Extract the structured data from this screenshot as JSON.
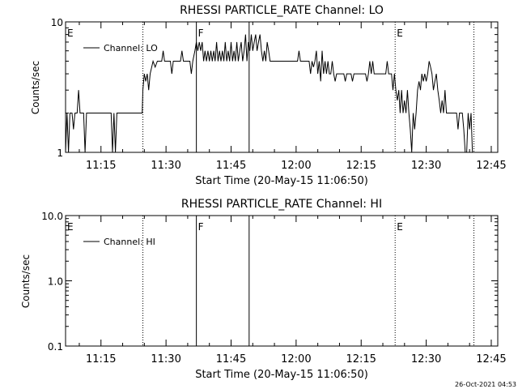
{
  "footer_timestamp": "26-Oct-2021 04:53",
  "chart_data": [
    {
      "type": "line",
      "title": "RHESSI PARTICLE_RATE Channel: LO",
      "xlabel": "Start Time (20-May-15 11:06:50)",
      "ylabel": "Counts/sec",
      "yscale": "log",
      "ylim": [
        1,
        10
      ],
      "ytick_labels": [
        "1",
        "10"
      ],
      "xlim": [
        "11:06:50",
        "12:46:30"
      ],
      "xtick_labels": [
        "11:15",
        "11:30",
        "11:45",
        "12:00",
        "12:15",
        "12:30",
        "12:45"
      ],
      "legend_entries": [
        "Channel: LO"
      ],
      "legend_position": "top-left",
      "markers": [
        {
          "label": "E",
          "time": "11:06:50",
          "style": "none"
        },
        {
          "label": "",
          "time": "11:24:40",
          "style": "dotted"
        },
        {
          "label": "F",
          "time": "11:37:00",
          "style": "solid"
        },
        {
          "label": "",
          "time": "11:49:10",
          "style": "solid"
        },
        {
          "label": "E",
          "time": "12:22:50",
          "style": "dotted"
        },
        {
          "label": "",
          "time": "12:41:00",
          "style": "dotted"
        }
      ],
      "series": [
        {
          "name": "Channel: LO",
          "points": [
            [
              "11:06:50",
              1.0
            ],
            [
              "11:07:10",
              2.0
            ],
            [
              "11:07:30",
              1.0
            ],
            [
              "11:07:50",
              2.0
            ],
            [
              "11:08:20",
              2.0
            ],
            [
              "11:08:40",
              1.5
            ],
            [
              "11:09:00",
              2.0
            ],
            [
              "11:09:30",
              2.0
            ],
            [
              "11:09:50",
              3.0
            ],
            [
              "11:10:10",
              2.0
            ],
            [
              "11:11:00",
              2.0
            ],
            [
              "11:11:20",
              1.0
            ],
            [
              "11:11:40",
              2.0
            ],
            [
              "11:15:00",
              2.0
            ],
            [
              "11:17:20",
              2.0
            ],
            [
              "11:17:40",
              1.0
            ],
            [
              "11:18:00",
              2.0
            ],
            [
              "11:18:20",
              1.0
            ],
            [
              "11:18:40",
              2.0
            ],
            [
              "11:24:30",
              2.0
            ],
            [
              "11:24:40",
              3.0
            ],
            [
              "11:25:00",
              4.0
            ],
            [
              "11:25:20",
              3.5
            ],
            [
              "11:25:40",
              4.0
            ],
            [
              "11:26:00",
              3.0
            ],
            [
              "11:26:20",
              4.0
            ],
            [
              "11:27:00",
              5.0
            ],
            [
              "11:27:30",
              4.5
            ],
            [
              "11:28:00",
              5.0
            ],
            [
              "11:29:00",
              5.0
            ],
            [
              "11:29:20",
              6.0
            ],
            [
              "11:29:40",
              5.0
            ],
            [
              "11:31:00",
              5.0
            ],
            [
              "11:31:20",
              4.0
            ],
            [
              "11:31:40",
              5.0
            ],
            [
              "11:33:20",
              5.0
            ],
            [
              "11:33:40",
              6.0
            ],
            [
              "11:34:00",
              5.0
            ],
            [
              "11:35:30",
              5.0
            ],
            [
              "11:35:50",
              4.0
            ],
            [
              "11:36:10",
              5.0
            ],
            [
              "11:36:40",
              6.0
            ],
            [
              "11:37:00",
              7.0
            ],
            [
              "11:37:20",
              6.0
            ],
            [
              "11:37:40",
              7.0
            ],
            [
              "11:38:00",
              6.0
            ],
            [
              "11:38:20",
              7.0
            ],
            [
              "11:38:40",
              5.0
            ],
            [
              "11:39:00",
              6.0
            ],
            [
              "11:39:20",
              5.0
            ],
            [
              "11:39:40",
              6.0
            ],
            [
              "11:40:00",
              5.0
            ],
            [
              "11:40:20",
              6.0
            ],
            [
              "11:40:40",
              5.0
            ],
            [
              "11:41:00",
              6.0
            ],
            [
              "11:41:20",
              5.0
            ],
            [
              "11:41:40",
              7.0
            ],
            [
              "11:42:00",
              5.0
            ],
            [
              "11:42:20",
              6.0
            ],
            [
              "11:42:40",
              5.0
            ],
            [
              "11:43:00",
              6.0
            ],
            [
              "11:43:20",
              5.0
            ],
            [
              "11:43:40",
              7.0
            ],
            [
              "11:44:00",
              5.0
            ],
            [
              "11:44:20",
              6.0
            ],
            [
              "11:44:40",
              5.0
            ],
            [
              "11:45:00",
              7.0
            ],
            [
              "11:45:20",
              5.0
            ],
            [
              "11:45:40",
              6.0
            ],
            [
              "11:46:00",
              5.0
            ],
            [
              "11:46:20",
              7.0
            ],
            [
              "11:46:40",
              5.0
            ],
            [
              "11:47:00",
              6.0
            ],
            [
              "11:47:20",
              7.0
            ],
            [
              "11:47:40",
              5.0
            ],
            [
              "11:48:00",
              6.0
            ],
            [
              "11:48:20",
              8.0
            ],
            [
              "11:48:40",
              5.0
            ],
            [
              "11:49:00",
              7.0
            ],
            [
              "11:49:20",
              6.0
            ],
            [
              "11:49:40",
              8.0
            ],
            [
              "11:50:00",
              6.0
            ],
            [
              "11:50:20",
              7.0
            ],
            [
              "11:50:40",
              8.0
            ],
            [
              "11:51:00",
              6.0
            ],
            [
              "11:51:20",
              7.0
            ],
            [
              "11:51:40",
              8.0
            ],
            [
              "11:52:00",
              6.0
            ],
            [
              "11:52:20",
              5.0
            ],
            [
              "11:52:40",
              6.0
            ],
            [
              "11:53:00",
              5.0
            ],
            [
              "11:53:20",
              7.0
            ],
            [
              "11:53:40",
              6.0
            ],
            [
              "11:54:00",
              5.0
            ],
            [
              "12:00:00",
              5.0
            ],
            [
              "12:00:20",
              5.0
            ],
            [
              "12:00:40",
              6.0
            ],
            [
              "12:01:00",
              5.0
            ],
            [
              "12:03:00",
              5.0
            ],
            [
              "12:03:20",
              4.0
            ],
            [
              "12:03:40",
              5.0
            ],
            [
              "12:04:00",
              4.5
            ],
            [
              "12:04:20",
              5.0
            ],
            [
              "12:04:40",
              6.0
            ],
            [
              "12:05:00",
              4.0
            ],
            [
              "12:05:20",
              5.0
            ],
            [
              "12:05:40",
              3.5
            ],
            [
              "12:06:00",
              6.0
            ],
            [
              "12:06:20",
              4.0
            ],
            [
              "12:06:40",
              5.0
            ],
            [
              "12:07:00",
              4.0
            ],
            [
              "12:07:20",
              5.0
            ],
            [
              "12:07:40",
              4.0
            ],
            [
              "12:08:00",
              4.0
            ],
            [
              "12:08:20",
              5.0
            ],
            [
              "12:08:40",
              4.0
            ],
            [
              "12:09:00",
              3.5
            ],
            [
              "12:09:20",
              4.0
            ],
            [
              "12:11:00",
              4.0
            ],
            [
              "12:11:20",
              3.5
            ],
            [
              "12:11:40",
              4.0
            ],
            [
              "12:12:40",
              4.0
            ],
            [
              "12:13:00",
              3.5
            ],
            [
              "12:13:20",
              4.0
            ],
            [
              "12:15:00",
              4.0
            ],
            [
              "12:16:00",
              4.0
            ],
            [
              "12:16:20",
              3.5
            ],
            [
              "12:16:40",
              4.0
            ],
            [
              "12:17:00",
              5.0
            ],
            [
              "12:17:20",
              4.0
            ],
            [
              "12:17:40",
              5.0
            ],
            [
              "12:18:00",
              4.0
            ],
            [
              "12:20:40",
              4.0
            ],
            [
              "12:21:00",
              5.0
            ],
            [
              "12:21:20",
              4.0
            ],
            [
              "12:22:00",
              4.0
            ],
            [
              "12:22:20",
              3.0
            ],
            [
              "12:22:40",
              4.0
            ],
            [
              "12:23:00",
              3.0
            ],
            [
              "12:23:20",
              2.5
            ],
            [
              "12:23:40",
              3.0
            ],
            [
              "12:24:00",
              2.0
            ],
            [
              "12:24:20",
              3.0
            ],
            [
              "12:24:40",
              2.0
            ],
            [
              "12:25:00",
              2.5
            ],
            [
              "12:25:20",
              2.0
            ],
            [
              "12:25:40",
              3.0
            ],
            [
              "12:26:00",
              2.0
            ],
            [
              "12:26:20",
              1.5
            ],
            [
              "12:26:40",
              1.0
            ],
            [
              "12:27:00",
              2.0
            ],
            [
              "12:27:20",
              1.5
            ],
            [
              "12:27:40",
              2.0
            ],
            [
              "12:28:00",
              3.0
            ],
            [
              "12:28:20",
              3.5
            ],
            [
              "12:28:40",
              3.0
            ],
            [
              "12:29:00",
              4.0
            ],
            [
              "12:29:20",
              3.5
            ],
            [
              "12:29:40",
              4.0
            ],
            [
              "12:30:00",
              3.5
            ],
            [
              "12:30:20",
              4.0
            ],
            [
              "12:30:40",
              5.0
            ],
            [
              "12:31:00",
              4.5
            ],
            [
              "12:31:20",
              4.0
            ],
            [
              "12:31:40",
              3.0
            ],
            [
              "12:32:00",
              3.5
            ],
            [
              "12:32:20",
              4.0
            ],
            [
              "12:32:40",
              3.0
            ],
            [
              "12:33:00",
              2.5
            ],
            [
              "12:33:20",
              2.0
            ],
            [
              "12:33:40",
              2.5
            ],
            [
              "12:34:00",
              2.0
            ],
            [
              "12:34:20",
              3.0
            ],
            [
              "12:34:40",
              2.0
            ],
            [
              "12:35:00",
              2.0
            ],
            [
              "12:37:00",
              2.0
            ],
            [
              "12:37:20",
              1.5
            ],
            [
              "12:37:40",
              2.0
            ],
            [
              "12:38:20",
              2.0
            ],
            [
              "12:38:40",
              1.5
            ],
            [
              "12:39:00",
              1.0
            ],
            [
              "12:39:20",
              1.0
            ],
            [
              "12:39:40",
              2.0
            ],
            [
              "12:40:00",
              1.5
            ],
            [
              "12:40:20",
              2.0
            ],
            [
              "12:40:40",
              1.0
            ]
          ]
        }
      ]
    },
    {
      "type": "line",
      "title": "RHESSI PARTICLE_RATE Channel: HI",
      "xlabel": "Start Time (20-May-15 11:06:50)",
      "ylabel": "Counts/sec",
      "yscale": "log",
      "ylim": [
        0.1,
        10
      ],
      "ytick_labels": [
        "0.1",
        "1.0",
        "10.0"
      ],
      "xlim": [
        "11:06:50",
        "12:46:30"
      ],
      "xtick_labels": [
        "11:15",
        "11:30",
        "11:45",
        "12:00",
        "12:15",
        "12:30",
        "12:45"
      ],
      "legend_entries": [
        "Channel: HI"
      ],
      "legend_position": "top-left",
      "markers": [
        {
          "label": "E",
          "time": "11:06:50",
          "style": "none"
        },
        {
          "label": "",
          "time": "11:24:40",
          "style": "dotted"
        },
        {
          "label": "F",
          "time": "11:37:00",
          "style": "solid"
        },
        {
          "label": "",
          "time": "11:49:10",
          "style": "solid"
        },
        {
          "label": "E",
          "time": "12:22:50",
          "style": "dotted"
        },
        {
          "label": "",
          "time": "12:41:00",
          "style": "dotted"
        }
      ],
      "series": [
        {
          "name": "Channel: HI",
          "points": []
        }
      ]
    }
  ]
}
